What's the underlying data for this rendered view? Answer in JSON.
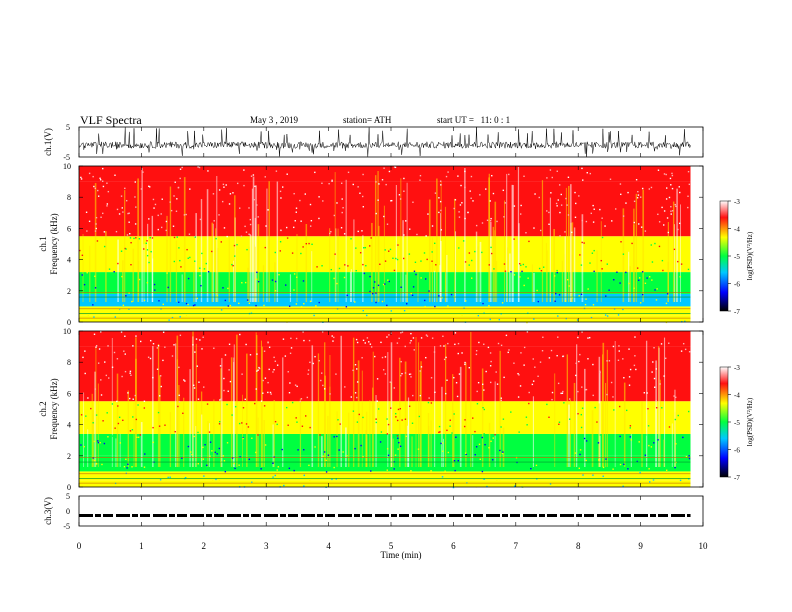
{
  "header": {
    "title": "VLF Spectra",
    "date": "May 3 , 2019",
    "station": "station= ATH",
    "start": "start UT =   11: 0 : 1"
  },
  "colors": {
    "trace": "#000000",
    "colormap": [
      "#000000",
      "#0000ff",
      "#00c8ff",
      "#00ff40",
      "#ffff00",
      "#ff1010",
      "#ffffff"
    ]
  },
  "chart_data": [
    {
      "type": "line",
      "panel": "ch1-waveform",
      "ylabel": "ch.1(V)",
      "ylim": [
        -5,
        5
      ],
      "yticks": [
        "5",
        "-5"
      ],
      "x_range": [
        0,
        9.8
      ],
      "description_of_values": "noisy waveform centered near -1 V with spikes reaching about +5 and -5"
    },
    {
      "type": "heatmap",
      "panel": "ch1-spectrogram",
      "ylabel": "ch.1\nFrequency (kHz)",
      "ylim": [
        0,
        10
      ],
      "yticks": [
        "0",
        "2",
        "4",
        "6",
        "8",
        "10"
      ],
      "x_range": [
        0,
        9.8
      ],
      "colorbar": {
        "label": "log(PSD)(V²/Hz)",
        "range": [
          -7,
          -3
        ],
        "ticks": [
          "-3",
          "-4",
          "-5",
          "-6",
          "-7"
        ]
      },
      "bands": [
        {
          "f_lo": 0,
          "f_hi": 0.4,
          "level": -4.6
        },
        {
          "f_lo": 0.4,
          "f_hi": 1.0,
          "level": -4.4
        },
        {
          "f_lo": 1.0,
          "f_hi": 1.8,
          "level": -5.6
        },
        {
          "f_lo": 1.8,
          "f_hi": 3.2,
          "level": -5.3
        },
        {
          "f_lo": 3.2,
          "f_hi": 5.5,
          "level": -4.3
        },
        {
          "f_lo": 5.5,
          "f_hi": 9.0,
          "level": -3.8
        },
        {
          "f_lo": 9.0,
          "f_hi": 10.0,
          "level": -3.9
        }
      ]
    },
    {
      "type": "heatmap",
      "panel": "ch2-spectrogram",
      "ylabel": "ch.2\nFrequency (kHz)",
      "ylim": [
        0,
        10
      ],
      "yticks": [
        "0",
        "2",
        "4",
        "6",
        "8",
        "10"
      ],
      "x_range": [
        0,
        9.8
      ],
      "colorbar": {
        "label": "log(PSD)(V²/Hz)",
        "range": [
          -7,
          -3
        ],
        "ticks": [
          "-3",
          "-4",
          "-5",
          "-6",
          "-7"
        ]
      },
      "bands": [
        {
          "f_lo": 0,
          "f_hi": 0.4,
          "level": -4.5
        },
        {
          "f_lo": 0.4,
          "f_hi": 1.0,
          "level": -4.4
        },
        {
          "f_lo": 1.0,
          "f_hi": 2.0,
          "level": -4.8
        },
        {
          "f_lo": 2.0,
          "f_hi": 3.4,
          "level": -5.2
        },
        {
          "f_lo": 3.4,
          "f_hi": 5.5,
          "level": -4.3
        },
        {
          "f_lo": 5.5,
          "f_hi": 9.0,
          "level": -3.8
        },
        {
          "f_lo": 9.0,
          "f_hi": 10.0,
          "level": -3.9
        }
      ]
    },
    {
      "type": "line",
      "panel": "ch3-waveform",
      "ylabel": "ch.3(V)",
      "ylim": [
        -5,
        5
      ],
      "yticks": [
        "5",
        "0",
        "-5"
      ],
      "x_range": [
        0,
        9.8
      ],
      "description_of_values": "flat trace near -1.5 V drawn as a dashed thick line"
    }
  ],
  "x_axis": {
    "label": "Time (min)",
    "range": [
      0,
      10
    ],
    "ticks": [
      "0",
      "1",
      "2",
      "3",
      "4",
      "5",
      "6",
      "7",
      "8",
      "9",
      "10"
    ]
  }
}
